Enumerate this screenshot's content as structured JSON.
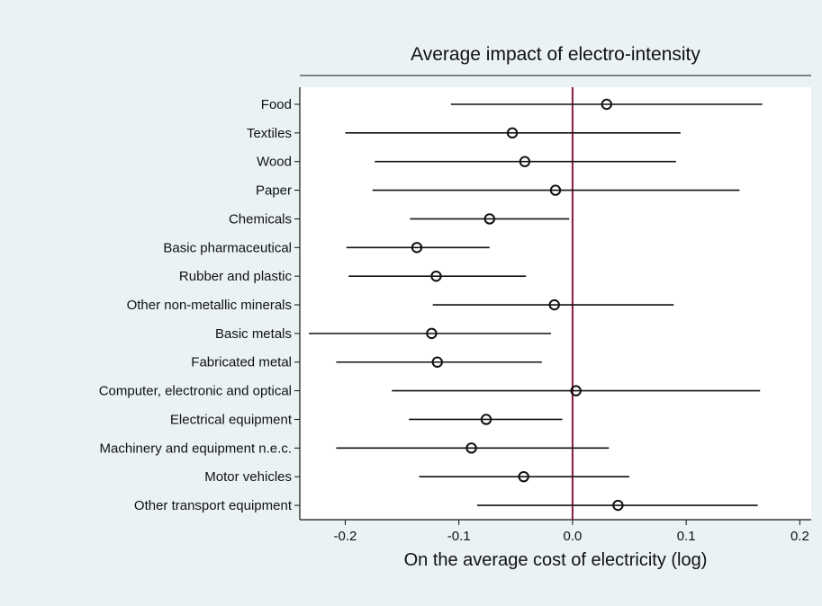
{
  "chart_data": {
    "type": "scatter",
    "subtype": "coefficient-plot",
    "title": "Average impact of electro-intensity",
    "xlabel": "On the average cost of electricity (log)",
    "ylabel": "",
    "xlim": [
      -0.24,
      0.21
    ],
    "xticks": [
      -0.2,
      -0.1,
      0.0,
      0.1,
      0.2
    ],
    "xtick_labels": [
      "-0.2",
      "-0.1",
      "0.0",
      "0.1",
      "0.2"
    ],
    "reference_line": {
      "x": 0.0,
      "color": "#8b1a3a"
    },
    "grid": false,
    "legend": "none",
    "categories": [
      "Food",
      "Textiles",
      "Wood",
      "Paper",
      "Chemicals",
      "Basic pharmaceutical",
      "Rubber and plastic",
      "Other non-metallic minerals",
      "Basic metals",
      "Fabricated metal",
      "Computer, electronic and optical",
      "Electrical equipment",
      "Machinery and equipment n.e.c.",
      "Motor vehicles",
      "Other transport equipment"
    ],
    "series": [
      {
        "estimate": [
          0.03,
          -0.053,
          -0.042,
          -0.015,
          -0.073,
          -0.137,
          -0.12,
          -0.016,
          -0.124,
          -0.119,
          0.003,
          -0.076,
          -0.089,
          -0.043,
          0.04
        ],
        "ci_low": [
          -0.107,
          -0.2,
          -0.174,
          -0.176,
          -0.143,
          -0.199,
          -0.197,
          -0.123,
          -0.232,
          -0.208,
          -0.159,
          -0.144,
          -0.208,
          -0.135,
          -0.084
        ],
        "ci_high": [
          0.167,
          0.095,
          0.091,
          0.147,
          -0.003,
          -0.073,
          -0.041,
          0.089,
          -0.019,
          -0.027,
          0.165,
          -0.009,
          0.032,
          0.05,
          0.163
        ]
      }
    ]
  },
  "colors": {
    "background": "#eaf2f3",
    "plot_background": "#ffffff",
    "reference_line": "#8b1a3a",
    "marks": "#111111"
  }
}
